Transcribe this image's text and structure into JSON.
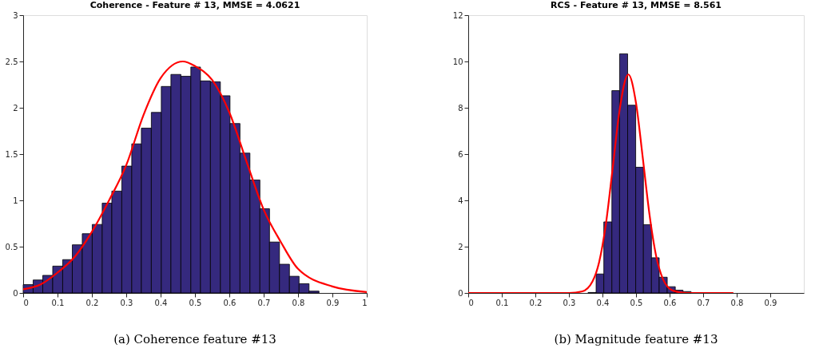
{
  "chart_data": [
    {
      "type": "histogram",
      "title": "Coherence - Feature # 13, MMSE = 4.0621",
      "bins": [
        0,
        0.029,
        0.057,
        0.086,
        0.115,
        0.143,
        0.172,
        0.201,
        0.23,
        0.258,
        0.287,
        0.316,
        0.344,
        0.373,
        0.402,
        0.43,
        0.459,
        0.488,
        0.516,
        0.545,
        0.574,
        0.602,
        0.631,
        0.66,
        0.689,
        0.717,
        0.746,
        0.775,
        0.803,
        0.832,
        0.861
      ],
      "values": [
        0.09,
        0.14,
        0.19,
        0.29,
        0.36,
        0.52,
        0.64,
        0.74,
        0.97,
        1.1,
        1.37,
        1.61,
        1.78,
        1.95,
        2.23,
        2.36,
        2.34,
        2.44,
        2.29,
        2.28,
        2.13,
        1.83,
        1.51,
        1.22,
        0.91,
        0.55,
        0.31,
        0.18,
        0.1,
        0.02
      ],
      "color": "#35297e",
      "series": [
        {
          "type": "line",
          "color": "#ff0000",
          "x": [
            0,
            0.05,
            0.1,
            0.15,
            0.2,
            0.25,
            0.3,
            0.35,
            0.4,
            0.465,
            0.5,
            0.55,
            0.6,
            0.65,
            0.7,
            0.75,
            0.8,
            0.9,
            1
          ],
          "values": [
            0.04,
            0.09,
            0.22,
            0.39,
            0.66,
            1.0,
            1.38,
            1.92,
            2.32,
            2.5,
            2.45,
            2.3,
            1.95,
            1.42,
            0.9,
            0.55,
            0.26,
            0.07,
            0.01
          ]
        }
      ],
      "xlim": [
        0,
        1
      ],
      "xticks": [
        0,
        0.1,
        0.2,
        0.3,
        0.4,
        0.5,
        0.6,
        0.7,
        0.8,
        0.9,
        1
      ],
      "ylim": [
        0,
        3
      ],
      "yticks": [
        0,
        0.5,
        1,
        1.5,
        2,
        2.5,
        3
      ],
      "grid": false,
      "annotations": [
        "(a) Coherence feature #13"
      ]
    },
    {
      "type": "histogram",
      "title": "RCS - Feature # 13, MMSE = 8.561",
      "bins": [
        0.357,
        0.381,
        0.404,
        0.428,
        0.451,
        0.475,
        0.499,
        0.522,
        0.546,
        0.569,
        0.593,
        0.617,
        0.64,
        0.664
      ],
      "values": [
        0.02,
        0.82,
        3.07,
        8.74,
        10.33,
        8.11,
        5.43,
        2.95,
        1.52,
        0.68,
        0.27,
        0.12,
        0.06
      ],
      "color": "#35297e",
      "series": [
        {
          "type": "line",
          "color": "#ff0000",
          "x": [
            0,
            0.3,
            0.34,
            0.37,
            0.39,
            0.41,
            0.43,
            0.45,
            0.477,
            0.5,
            0.52,
            0.54,
            0.56,
            0.58,
            0.61,
            0.65,
            0.7,
            0.79
          ],
          "values": [
            0,
            0,
            0.07,
            0.49,
            1.33,
            2.96,
            5.34,
            7.8,
            9.44,
            8.2,
            5.85,
            3.4,
            1.59,
            0.61,
            0.1,
            0,
            0,
            0
          ]
        }
      ],
      "xlim": [
        0,
        1
      ],
      "xticks": [
        0,
        0.1,
        0.2,
        0.3,
        0.4,
        0.5,
        0.6,
        0.7,
        0.8,
        0.9
      ],
      "ylim": [
        0,
        12
      ],
      "yticks": [
        0,
        2,
        4,
        6,
        8,
        10,
        12
      ],
      "grid": false,
      "annotations": [
        "(b) Magnitude feature #13"
      ]
    }
  ]
}
